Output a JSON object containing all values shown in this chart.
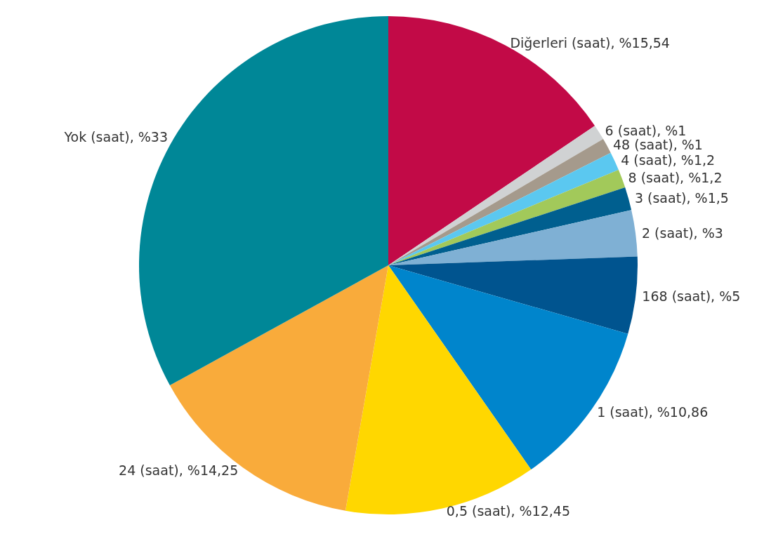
{
  "chart_data": {
    "type": "pie",
    "categories": [
      "Diğerleri (saat)",
      "6 (saat)",
      "48 (saat)",
      "4 (saat)",
      "8 (saat)",
      "3 (saat)",
      "2 (saat)",
      "168 (saat)",
      "1 (saat)",
      "0,5 (saat)",
      "24 (saat)",
      "Yok (saat)"
    ],
    "values": [
      15.54,
      1,
      1,
      1.2,
      1.2,
      1.5,
      3,
      5,
      10.86,
      12.45,
      14.25,
      33
    ],
    "value_labels": [
      "%15,54",
      "%1",
      "%1",
      "%1,2",
      "%1,2",
      "%1,5",
      "%3",
      "%5",
      "%10,86",
      "%12,45",
      "%14,25",
      "%33"
    ],
    "colors": [
      "#c20a47",
      "#d0d2d3",
      "#a59a8c",
      "#5bc8f0",
      "#a2c95a",
      "#005f8f",
      "#7fb0d4",
      "#00548f",
      "#0085cc",
      "#ffd700",
      "#f9ab3b",
      "#008797"
    ],
    "legend": false
  }
}
